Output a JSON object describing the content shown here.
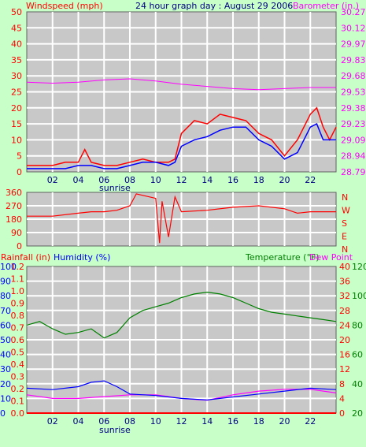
{
  "header": {
    "left_label": "Windspeed (mph)",
    "title": "24 hour graph day : August 29 2006",
    "right_label": "Barometer (in.)"
  },
  "colors": {
    "background": "#c8ffc8",
    "plot": "#c8c8c8",
    "red": "#ff0000",
    "blue": "#0000ff",
    "magenta": "#ff00ff",
    "green": "#008000",
    "navy": "#000080"
  },
  "panel_top": {
    "left_ticks": [
      "0",
      "5",
      "10",
      "15",
      "20",
      "25",
      "30",
      "35",
      "40",
      "45",
      "50"
    ],
    "right_ticks": [
      "28.79",
      "28.94",
      "29.09",
      "29.23",
      "29.38",
      "29.53",
      "29.68",
      "29.83",
      "29.97",
      "30.12",
      "30.27"
    ],
    "x_ticks": [
      "02",
      "04",
      "06",
      "08",
      "10",
      "12",
      "14",
      "16",
      "18",
      "20",
      "22"
    ],
    "sunrise_label": "sunrise"
  },
  "panel_mid": {
    "left_ticks": [
      "0",
      "90",
      "180",
      "270",
      "360"
    ],
    "right_ticks": [
      "N",
      "W",
      "S",
      "E",
      "N"
    ]
  },
  "panel_bot": {
    "label_rainfall": "Rainfall (in)",
    "label_humidity": "Humidity (%)",
    "label_temperature": "Temperature (°F)",
    "label_dewpoint": "Dew Point",
    "rain_ticks": [
      "0.0",
      "0.1",
      "0.2",
      "0.3",
      "0.4",
      "0.5",
      "0.6",
      "0.7",
      "0.8",
      "0.9",
      "1.0",
      "1.1",
      "1.2"
    ],
    "humidity_ticks": [
      "0",
      "10",
      "20",
      "30",
      "40",
      "50",
      "60",
      "70",
      "80",
      "90",
      "100"
    ],
    "temp_ticks_a": [
      "0",
      "4",
      "8",
      "12",
      "16",
      "20",
      "24",
      "28",
      "32",
      "36",
      "40"
    ],
    "temp_ticks_b": [
      "20",
      "40",
      "60",
      "80",
      "100",
      "120"
    ],
    "x_ticks": [
      "02",
      "04",
      "06",
      "08",
      "10",
      "12",
      "14",
      "16",
      "18",
      "20",
      "22"
    ],
    "sunrise_label": "sunrise"
  },
  "chart_data": [
    {
      "type": "line",
      "title": "24 hour graph day : August 29 2006",
      "x_unit": "hour",
      "xlim": [
        0,
        24
      ],
      "ylim_left": [
        0,
        50
      ],
      "ylim_right": [
        28.79,
        30.27
      ],
      "series": [
        {
          "name": "Windspeed (mph)",
          "axis": "left",
          "color": "#ff0000",
          "x": [
            0,
            1,
            2,
            3,
            4,
            4.5,
            5,
            6,
            7,
            8,
            9,
            10,
            11,
            11.5,
            12,
            13,
            14,
            15,
            16,
            17,
            18,
            19,
            20,
            21,
            22,
            22.5,
            23,
            23.5,
            24
          ],
          "y": [
            2,
            2,
            2,
            3,
            3,
            7,
            3,
            2,
            2,
            3,
            4,
            3,
            3,
            4,
            12,
            16,
            15,
            18,
            17,
            16,
            12,
            10,
            5,
            10,
            18,
            20,
            14,
            10,
            14
          ]
        },
        {
          "name": "Windspeed avg",
          "axis": "left",
          "color": "#0000ff",
          "x": [
            0,
            1,
            2,
            3,
            4,
            5,
            6,
            7,
            8,
            9,
            10,
            11,
            11.5,
            12,
            13,
            14,
            15,
            16,
            17,
            18,
            19,
            20,
            21,
            22,
            22.5,
            23,
            24
          ],
          "y": [
            1,
            1,
            1,
            1,
            2,
            2,
            1,
            1,
            2,
            3,
            3,
            2,
            3,
            8,
            10,
            11,
            13,
            14,
            14,
            10,
            8,
            4,
            6,
            14,
            15,
            10,
            10
          ]
        },
        {
          "name": "Barometer (in.)",
          "axis": "right",
          "color": "#ff00ff",
          "x": [
            0,
            2,
            4,
            6,
            8,
            10,
            12,
            14,
            16,
            18,
            20,
            22,
            24
          ],
          "y": [
            29.62,
            29.61,
            29.62,
            29.64,
            29.65,
            29.63,
            29.6,
            29.58,
            29.56,
            29.55,
            29.56,
            29.57,
            29.57
          ]
        }
      ]
    },
    {
      "type": "line",
      "title": "",
      "x_unit": "hour",
      "xlim": [
        0,
        24
      ],
      "ylim": [
        0,
        360
      ],
      "series": [
        {
          "name": "Wind direction",
          "color": "#ff0000",
          "x": [
            0,
            2,
            4,
            5,
            6,
            7,
            8,
            8.5,
            9,
            10,
            10.3,
            10.5,
            11,
            11.5,
            12,
            14,
            16,
            18,
            20,
            21,
            22,
            24
          ],
          "y": [
            200,
            200,
            220,
            230,
            230,
            240,
            270,
            350,
            340,
            320,
            20,
            300,
            60,
            330,
            230,
            240,
            260,
            270,
            250,
            220,
            230,
            230
          ]
        }
      ]
    },
    {
      "type": "line",
      "title": "",
      "x_unit": "hour",
      "xlim": [
        0,
        24
      ],
      "ylim_left": [
        0,
        100
      ],
      "ylim_right": [
        0,
        40
      ],
      "ylim_rain": [
        0,
        1.2
      ],
      "series": [
        {
          "name": "Temperature (°F)",
          "axis": "right",
          "color": "#008000",
          "x": [
            0,
            1,
            2,
            3,
            4,
            5,
            6,
            7,
            8,
            9,
            10,
            11,
            12,
            13,
            14,
            15,
            16,
            17,
            18,
            19,
            20,
            21,
            22,
            23,
            24
          ],
          "y": [
            24,
            25,
            23,
            21.5,
            22,
            23,
            20.5,
            22,
            26,
            28,
            29,
            30,
            31.5,
            32.5,
            33,
            32.5,
            31.5,
            30,
            28.5,
            27.5,
            27,
            26.5,
            26,
            25.5,
            25
          ]
        },
        {
          "name": "Dew Point",
          "axis": "right",
          "color": "#ff00ff",
          "x": [
            0,
            2,
            4,
            6,
            8,
            10,
            12,
            14,
            16,
            18,
            20,
            22,
            24
          ],
          "y": [
            5,
            4,
            4,
            4.5,
            5,
            5,
            4,
            3.5,
            5,
            6,
            6.5,
            6.5,
            5.5
          ]
        },
        {
          "name": "Humidity (%)",
          "axis": "left",
          "color": "#0000ff",
          "x": [
            0,
            2,
            4,
            5,
            6,
            7,
            8,
            10,
            12,
            14,
            16,
            18,
            20,
            22,
            24
          ],
          "y": [
            17,
            16,
            18,
            21,
            22,
            18,
            13,
            12,
            10,
            9,
            11,
            13,
            15,
            17,
            16
          ]
        },
        {
          "name": "Rainfall (in)",
          "axis": "rain",
          "color": "#ff0000",
          "x": [
            0,
            24
          ],
          "y": [
            0,
            0
          ]
        }
      ]
    }
  ]
}
